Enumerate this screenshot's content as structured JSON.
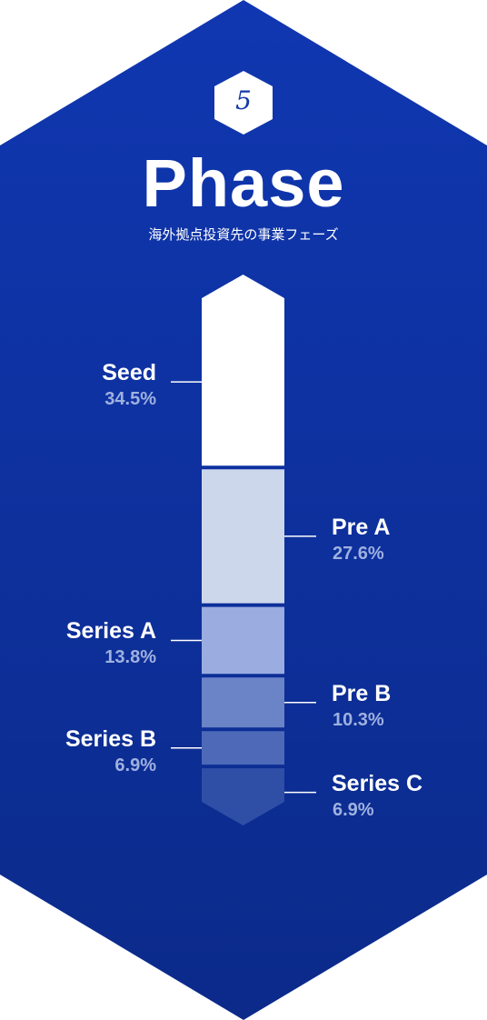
{
  "header": {
    "phase_number": "5",
    "title": "Phase",
    "subtitle": "海外拠点投資先の事業フェーズ"
  },
  "colors": {
    "background_top": "#1037b1",
    "background_bottom": "#0b2a8a",
    "label_text": "#ffffff",
    "percent_text": "#9fb1e0"
  },
  "chart_data": {
    "type": "bar",
    "orientation": "vertical-stacked",
    "categories": [
      "Seed",
      "Pre A",
      "Series A",
      "Pre B",
      "Series B",
      "Series C"
    ],
    "values": [
      34.5,
      27.6,
      13.8,
      10.3,
      6.9,
      6.9
    ],
    "value_labels": [
      "34.5%",
      "27.6%",
      "13.8%",
      "10.3%",
      "6.9%",
      "6.9%"
    ],
    "segment_colors": [
      "#ffffff",
      "#cdd7ec",
      "#9aace0",
      "#6b83c7",
      "#4d69b8",
      "#2f4fa6"
    ],
    "label_sides": [
      "left",
      "right",
      "left",
      "right",
      "left",
      "right"
    ],
    "unit": "%"
  }
}
